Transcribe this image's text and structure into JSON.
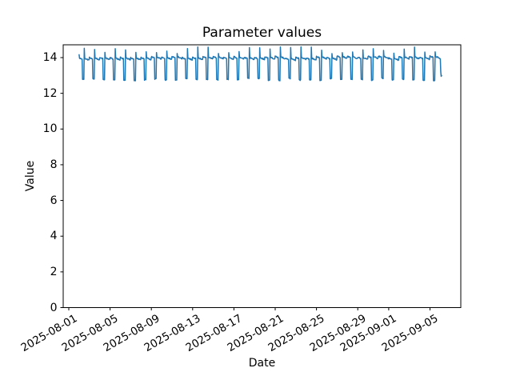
{
  "figure": {
    "title": "Parameter values",
    "xlabel": "Date",
    "ylabel": "Value",
    "background_color": "#ffffff",
    "axes_color": "#000000"
  },
  "chart_data": {
    "type": "line",
    "title": "Parameter values",
    "xlabel": "Date",
    "ylabel": "Value",
    "legend": null,
    "grid": false,
    "line_color": "#1f77b4",
    "line_width": 1.5,
    "x_start": "2025-08-02 00:00",
    "x_end": "2025-09-06 03:00",
    "sampling": "hourly",
    "x_tick_labels": [
      "2025-08-01",
      "2025-08-05",
      "2025-08-09",
      "2025-08-13",
      "2025-08-17",
      "2025-08-21",
      "2025-08-25",
      "2025-08-29",
      "2025-09-01",
      "2025-09-05"
    ],
    "x_tick_day_offsets": [
      0,
      4,
      8,
      12,
      16,
      20,
      24,
      28,
      31,
      35
    ],
    "y_ticks": [
      0,
      2,
      4,
      6,
      8,
      10,
      12,
      14
    ],
    "ylim": [
      0,
      14.72
    ],
    "xlim_days_from_2025_08_01": [
      -0.54,
      37.98
    ],
    "value_range_observed": [
      12.69,
      14.62
    ],
    "daily_pattern": {
      "description": "Repeating 24h cycle: high plateau most of the day, sharp dip for ~4h, then a 1h spike, back to plateau",
      "start_value": 14.16,
      "plateau_value_start_of_day": 14.03,
      "plateau_value_end_of_day": 13.8,
      "dip_value": 12.78,
      "dip_start_hour": 8,
      "dip_end_hour": 11,
      "spike_hour": 12,
      "spike_value_min": 14.2,
      "spike_value_max": 14.62,
      "hour_jitter": 0.06,
      "day_to_day_variation": 0.12,
      "num_full_days": 35,
      "end_values": [
        13.92,
        13.2,
        12.95,
        13.0
      ]
    }
  }
}
